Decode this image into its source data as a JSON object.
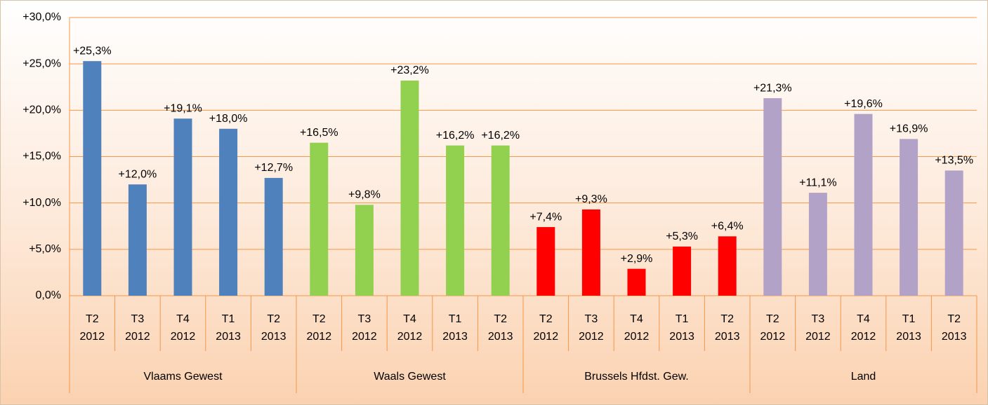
{
  "chart_data": {
    "type": "bar",
    "ylim": [
      0,
      30
    ],
    "yticks": [
      {
        "value": 0,
        "label": "0,0%"
      },
      {
        "value": 5,
        "label": "+5,0%"
      },
      {
        "value": 10,
        "label": "+10,0%"
      },
      {
        "value": 15,
        "label": "+15,0%"
      },
      {
        "value": 20,
        "label": "+20,0%"
      },
      {
        "value": 25,
        "label": "+25,0%"
      },
      {
        "value": 30,
        "label": "+30,0%"
      }
    ],
    "grid": true,
    "groups": [
      {
        "name": "Vlaams Gewest",
        "color": "#4f81bd",
        "categories": [
          "T2 2012",
          "T3 2012",
          "T4 2012",
          "T1 2013",
          "T2 2013"
        ],
        "values": [
          25.3,
          12.0,
          19.1,
          18.0,
          12.7
        ],
        "value_labels": [
          "+25,3%",
          "+12,0%",
          "+19,1%",
          "+18,0%",
          "+12,7%"
        ]
      },
      {
        "name": "Waals Gewest",
        "color": "#92d050",
        "categories": [
          "T2 2012",
          "T3 2012",
          "T4 2012",
          "T1 2013",
          "T2 2013"
        ],
        "values": [
          16.5,
          9.8,
          23.2,
          16.2,
          16.2
        ],
        "value_labels": [
          "+16,5%",
          "+9,8%",
          "+23,2%",
          "+16,2%",
          "+16,2%"
        ]
      },
      {
        "name": "Brussels Hfdst. Gew.",
        "color": "#ff0000",
        "categories": [
          "T2 2012",
          "T3 2012",
          "T4 2012",
          "T1 2013",
          "T2 2013"
        ],
        "values": [
          7.4,
          9.3,
          2.9,
          5.3,
          6.4
        ],
        "value_labels": [
          "+7,4%",
          "+9,3%",
          "+2,9%",
          "+5,3%",
          "+6,4%"
        ]
      },
      {
        "name": "Land",
        "color": "#b3a2c7",
        "categories": [
          "T2 2012",
          "T3 2012",
          "T4 2012",
          "T1 2013",
          "T2 2013"
        ],
        "values": [
          21.3,
          11.1,
          19.6,
          16.9,
          13.5
        ],
        "value_labels": [
          "+21,3%",
          "+11,1%",
          "+19,6%",
          "+16,9%",
          "+13,5%"
        ]
      }
    ]
  }
}
